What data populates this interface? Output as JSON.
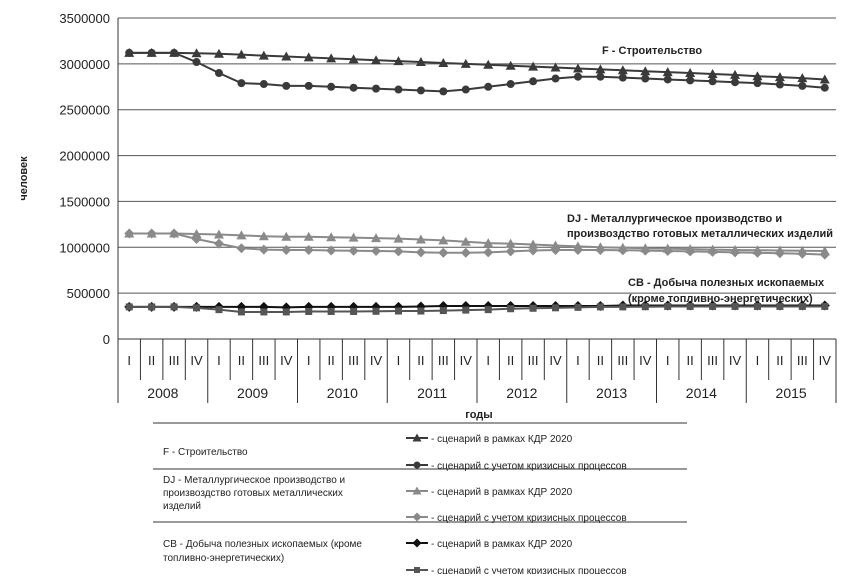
{
  "chart_data": {
    "type": "line",
    "ylabel": "человек",
    "xlabel": "годы",
    "ylim": [
      0,
      3500000
    ],
    "yticks": [
      "0",
      "500000",
      "1000000",
      "1500000",
      "2000000",
      "2500000",
      "3000000",
      "3500000"
    ],
    "grid": true,
    "quarters": [
      "I",
      "II",
      "III",
      "IV"
    ],
    "years": [
      "2008",
      "2009",
      "2010",
      "2011",
      "2012",
      "2013",
      "2014",
      "2015"
    ],
    "annotations": [
      {
        "text": "F - Строительство"
      },
      {
        "text": "DJ - Металлургическое производство и"
      },
      {
        "text": "произвоздство готовых металлических изделий"
      },
      {
        "text": "CB - Добыча полезных ископаемых"
      },
      {
        "text": "(кроме топливно-энергетических)"
      }
    ],
    "series": [
      {
        "group": "F",
        "scenario": "kdr",
        "marker": "triangle",
        "color": "#3a3a3a",
        "values": [
          3120000,
          3120000,
          3120000,
          3115000,
          3110000,
          3100000,
          3090000,
          3080000,
          3070000,
          3060000,
          3050000,
          3040000,
          3030000,
          3020000,
          3010000,
          3000000,
          2990000,
          2980000,
          2970000,
          2960000,
          2950000,
          2940000,
          2930000,
          2920000,
          2910000,
          2900000,
          2890000,
          2880000,
          2865000,
          2855000,
          2845000,
          2830000
        ]
      },
      {
        "group": "F",
        "scenario": "crisis",
        "marker": "circle",
        "color": "#3a3a3a",
        "values": [
          3120000,
          3120000,
          3120000,
          3020000,
          2900000,
          2790000,
          2780000,
          2760000,
          2760000,
          2750000,
          2740000,
          2730000,
          2720000,
          2710000,
          2700000,
          2720000,
          2750000,
          2780000,
          2810000,
          2840000,
          2860000,
          2860000,
          2850000,
          2840000,
          2830000,
          2820000,
          2810000,
          2800000,
          2790000,
          2775000,
          2760000,
          2740000
        ]
      },
      {
        "group": "DJ",
        "scenario": "kdr",
        "marker": "triangle",
        "color": "#8a8a8a",
        "values": [
          1150000,
          1150000,
          1150000,
          1145000,
          1140000,
          1130000,
          1120000,
          1115000,
          1115000,
          1110000,
          1105000,
          1100000,
          1095000,
          1085000,
          1075000,
          1060000,
          1045000,
          1040000,
          1030000,
          1020000,
          1010000,
          1000000,
          995000,
          990000,
          985000,
          980000,
          975000,
          970000,
          968000,
          965000,
          962000,
          960000
        ]
      },
      {
        "group": "DJ",
        "scenario": "crisis",
        "marker": "diamond",
        "color": "#8a8a8a",
        "values": [
          1150000,
          1150000,
          1150000,
          1090000,
          1040000,
          990000,
          975000,
          970000,
          970000,
          965000,
          962000,
          960000,
          955000,
          945000,
          940000,
          940000,
          945000,
          955000,
          965000,
          970000,
          970000,
          970000,
          968000,
          964000,
          960000,
          955000,
          950000,
          945000,
          940000,
          935000,
          930000,
          920000
        ]
      },
      {
        "group": "CB",
        "scenario": "kdr",
        "marker": "diamond",
        "color": "#111111",
        "values": [
          350000,
          350000,
          350000,
          350000,
          350000,
          350000,
          350000,
          345000,
          350000,
          350000,
          350000,
          350000,
          350000,
          355000,
          360000,
          360000,
          360000,
          360000,
          360000,
          360000,
          360000,
          360000,
          365000,
          365000,
          365000,
          365000,
          365000,
          365000,
          365000,
          365000,
          365000,
          365000
        ]
      },
      {
        "group": "CB",
        "scenario": "crisis",
        "marker": "square",
        "color": "#555555",
        "values": [
          350000,
          350000,
          350000,
          340000,
          320000,
          295000,
          295000,
          295000,
          300000,
          300000,
          300000,
          302000,
          305000,
          305000,
          310000,
          315000,
          320000,
          330000,
          335000,
          340000,
          345000,
          350000,
          350000,
          352000,
          355000,
          355000,
          355000,
          355000,
          355000,
          355000,
          355000,
          355000
        ]
      }
    ]
  },
  "legend": {
    "rows": [
      {
        "label": "F - Строительство",
        "line1": "- сценарий в рамках КДР 2020",
        "line2": "- сценарий с учетом кризисных процессов"
      },
      {
        "label": "DJ - Металлургическое производство и произвоздство готовых металлических изделий",
        "line1": "- сценарий в рамках КДР 2020",
        "line2": "- сценарий с учетом кризисных процессов"
      },
      {
        "label": "CB - Добыча полезных ископаемых (кроме топливно-энергетических)",
        "line1": "- сценарий в рамках КДР 2020",
        "line2": "- сценарий с учетом кризисных процессов"
      }
    ]
  }
}
